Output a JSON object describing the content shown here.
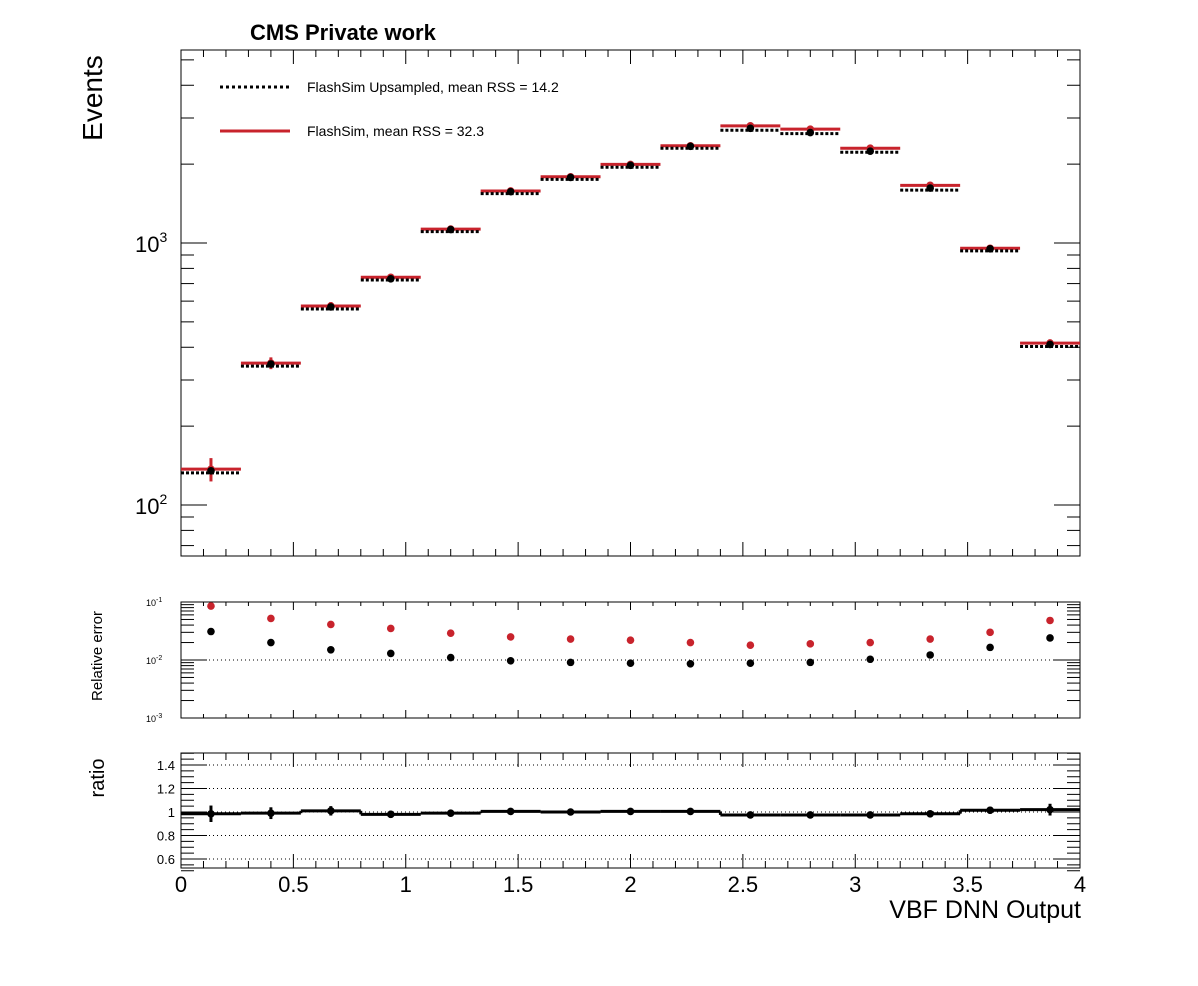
{
  "title": "CMS Private work",
  "colors": {
    "flashsim": "#c8232c",
    "upsampled": "#000000"
  },
  "legend": [
    {
      "label": "FlashSim Upsampled, mean RSS = 14.2",
      "style": "dotted",
      "color": "#000000"
    },
    {
      "label": "FlashSim, mean RSS = 32.3",
      "style": "solid",
      "color": "#c8232c"
    }
  ],
  "chart_data": [
    {
      "type": "line",
      "panel": "main",
      "ylabel": "Events",
      "yscale": "log",
      "ylim": [
        65,
        5700
      ],
      "xlim": [
        0,
        4
      ],
      "x_bin_edges": [
        0,
        0.2667,
        0.5333,
        0.8,
        1.0667,
        1.3333,
        1.6,
        1.8667,
        2.1333,
        2.4,
        2.6667,
        2.9333,
        3.2,
        3.4667,
        3.7333,
        4.0
      ],
      "ytick_labels": [
        "10",
        "10"
      ],
      "ytick_exponents": [
        "2",
        "3"
      ],
      "series": [
        {
          "name": "FlashSim Upsampled, mean RSS = 14.2",
          "style": "dotted-step",
          "values": [
            135,
            345,
            570,
            735,
            1125,
            1570,
            1780,
            1980,
            2340,
            2740,
            2660,
            2260,
            1620,
            950,
            410
          ]
        },
        {
          "name": "FlashSim, mean RSS = 32.3",
          "style": "solid-step",
          "values": [
            137,
            348,
            575,
            740,
            1130,
            1580,
            1790,
            1995,
            2350,
            2800,
            2720,
            2300,
            1660,
            955,
            415
          ],
          "errors": [
            14,
            18,
            20,
            20,
            22,
            25,
            25,
            27,
            30,
            34,
            34,
            30,
            26,
            20,
            14
          ]
        },
        {
          "name": "markers",
          "style": "points",
          "values": [
            135,
            345,
            570,
            730,
            1125,
            1570,
            1780,
            1980,
            2340,
            2740,
            2640,
            2240,
            1620,
            950,
            410
          ]
        }
      ]
    },
    {
      "type": "scatter",
      "panel": "relative-error",
      "ylabel": "Relative error",
      "yscale": "log",
      "ylim": [
        0.001,
        0.1
      ],
      "ytick_labels": [
        "10",
        "10",
        "10"
      ],
      "ytick_exponents": [
        "-3",
        "-2",
        "-1"
      ],
      "reference_line": 0.01,
      "series": [
        {
          "name": "FlashSim",
          "color": "#c8232c",
          "values": [
            0.085,
            0.052,
            0.041,
            0.035,
            0.029,
            0.025,
            0.023,
            0.022,
            0.02,
            0.018,
            0.019,
            0.02,
            0.023,
            0.03,
            0.048
          ]
        },
        {
          "name": "FlashSim Upsampled",
          "color": "#000000",
          "values": [
            0.031,
            0.02,
            0.015,
            0.013,
            0.011,
            0.0097,
            0.0091,
            0.0088,
            0.0086,
            0.0088,
            0.0091,
            0.0103,
            0.0122,
            0.0165,
            0.024
          ]
        }
      ]
    },
    {
      "type": "line",
      "panel": "ratio",
      "ylabel": "ratio",
      "xlabel": "VBF DNN Output",
      "ylim": [
        0.5,
        1.5
      ],
      "yticks": [
        "0.6",
        "0.8",
        "1",
        "1.2",
        "1.4"
      ],
      "ytick_values": [
        0.6,
        0.8,
        1.0,
        1.2,
        1.4
      ],
      "xticks": [
        "0",
        "0.5",
        "1",
        "1.5",
        "2",
        "2.5",
        "3",
        "3.5",
        "4"
      ],
      "xtick_values": [
        0,
        0.5,
        1,
        1.5,
        2,
        2.5,
        3,
        3.5,
        4
      ],
      "values": [
        0.985,
        0.99,
        1.01,
        0.98,
        0.99,
        1.005,
        1.0,
        1.005,
        1.005,
        0.975,
        0.975,
        0.975,
        0.985,
        1.015,
        1.02
      ],
      "errors": [
        0.07,
        0.05,
        0.04,
        0.03,
        0.02,
        0.015,
        0.015,
        0.015,
        0.015,
        0.015,
        0.015,
        0.015,
        0.02,
        0.03,
        0.05
      ]
    }
  ]
}
